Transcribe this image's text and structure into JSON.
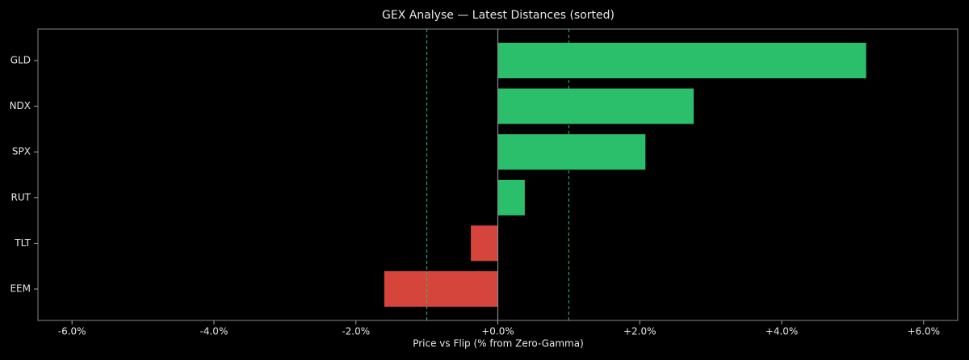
{
  "chart_data": {
    "type": "barh",
    "title": "GEX Analyse — Latest Distances (sorted)",
    "x_label": "Price vs Flip (% from Zero-Gamma)",
    "categories": [
      "GLD",
      "NDX",
      "SPX",
      "RUT",
      "TLT",
      "EEM"
    ],
    "values": [
      5.19,
      2.76,
      2.08,
      0.38,
      -0.38,
      -1.6
    ],
    "positive_color": "#2bbf6c",
    "negative_color": "#d6453b",
    "xlim": [
      -6.48,
      6.48
    ],
    "xticks": [
      {
        "value": -6,
        "label": "-6.0%"
      },
      {
        "value": -4,
        "label": "-4.0%"
      },
      {
        "value": -2,
        "label": "-2.0%"
      },
      {
        "value": 0,
        "label": "+0.0%"
      },
      {
        "value": 2,
        "label": "+2.0%"
      },
      {
        "value": 4,
        "label": "+4.0%"
      },
      {
        "value": 6,
        "label": "+6.0%"
      }
    ],
    "thresholds": [
      -1,
      1
    ],
    "threshold_color": "#2bbf6c"
  }
}
